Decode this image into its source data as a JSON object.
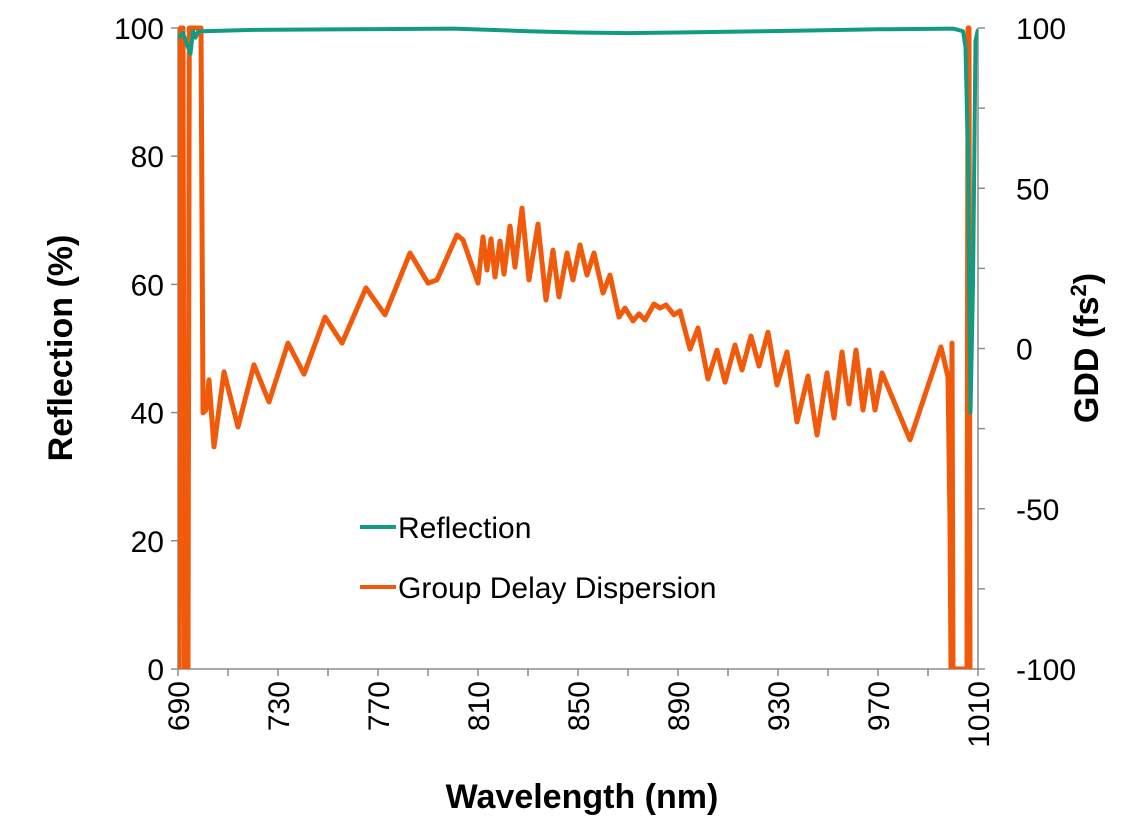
{
  "chart_data": {
    "type": "line",
    "xlabel": "Wavelength (nm)",
    "ylabel": "Reflection (%)",
    "y2label": "GDD (fs²)",
    "xlim": [
      690,
      1010
    ],
    "ylim": [
      0,
      100
    ],
    "y2lim": [
      -100,
      100
    ],
    "xticks": [
      690,
      730,
      770,
      810,
      850,
      890,
      930,
      970,
      1010
    ],
    "yticks": [
      0,
      20,
      40,
      60,
      80,
      100
    ],
    "y2ticks": [
      100,
      50,
      0,
      -50,
      -100
    ],
    "grid": false,
    "legend_position": "center-left",
    "series": [
      {
        "name": "Reflection",
        "axis": "left",
        "color": "#119b82",
        "x": [
          690,
          692,
          694,
          695,
          696,
          697,
          698,
          700,
          720,
          760,
          800,
          830,
          850,
          870,
          890,
          910,
          940,
          970,
          1000,
          1004,
          1005,
          1006,
          1007,
          1008,
          1009,
          1010
        ],
        "y": [
          98.5,
          99.2,
          97.0,
          96.0,
          99.5,
          98.5,
          99.4,
          99.5,
          99.7,
          99.8,
          99.9,
          99.5,
          99.3,
          99.2,
          99.3,
          99.4,
          99.6,
          99.8,
          99.9,
          99.5,
          97,
          80,
          40,
          60,
          98,
          99.8
        ]
      },
      {
        "name": "Group Delay Dispersion",
        "axis": "right",
        "color": "#f05a0a",
        "x": [
          690.4,
          691,
          692,
          692.5,
          694,
          694.5,
          698,
          699.2,
          700,
          701.2,
          702.4,
          704.4,
          708.4,
          714,
          720.4,
          726.4,
          734,
          740.4,
          748.8,
          755.6,
          765.2,
          772.8,
          782.8,
          790,
          793.6,
          801.6,
          804,
          810,
          812,
          813.6,
          815.2,
          816.8,
          818.8,
          820.4,
          822.8,
          824.8,
          827.6,
          830.4,
          834,
          837.2,
          840,
          842.4,
          845.6,
          848,
          850.8,
          853.6,
          856.4,
          860,
          862.8,
          866.4,
          868.8,
          872,
          874.4,
          876.8,
          880.4,
          882.8,
          885.2,
          888.4,
          890.8,
          894.8,
          898,
          902,
          905.6,
          908.8,
          912.8,
          915.6,
          919.2,
          922.4,
          926,
          929.6,
          933.6,
          937.6,
          942,
          945.6,
          949.6,
          952.4,
          955.6,
          958.4,
          961.2,
          964,
          966.4,
          968.8,
          971.6,
          982.8,
          995.2,
          998,
          998.8,
          999.2,
          999.6,
          1000,
          1005.6,
          1006,
          1006.4,
          1006.8
        ],
        "y": [
          -100,
          100,
          100,
          -100,
          -100,
          100,
          100,
          100,
          -20.1,
          -19.2,
          -9.8,
          -30.7,
          -7.3,
          -24.5,
          -5.1,
          -16.7,
          1.7,
          -8.0,
          9.8,
          1.7,
          18.9,
          10.5,
          29.8,
          20.4,
          21.4,
          35.4,
          33.9,
          20.4,
          34.8,
          24.5,
          34.2,
          22.3,
          33.5,
          23.2,
          38.2,
          25.4,
          43.8,
          21.4,
          38.8,
          15.1,
          30.7,
          16.1,
          29.8,
          21.4,
          32.3,
          22.9,
          29.8,
          17.3,
          22.9,
          9.8,
          12.6,
          8.6,
          10.8,
          8.9,
          13.9,
          12.6,
          13.6,
          10.5,
          11.7,
          -0.2,
          6.4,
          -9.5,
          -0.5,
          -10.5,
          1.1,
          -6.7,
          3.9,
          -5.5,
          5.1,
          -11.4,
          -1.1,
          -22.9,
          -8.6,
          -27.0,
          -7.6,
          -21.7,
          -1.1,
          -17.3,
          -0.5,
          -19.2,
          -6.7,
          -19.2,
          -7.6,
          -28.5,
          0.5,
          -8.9,
          -54.1,
          -100,
          1.7,
          -100,
          -100,
          100,
          100,
          -100
        ]
      }
    ]
  }
}
